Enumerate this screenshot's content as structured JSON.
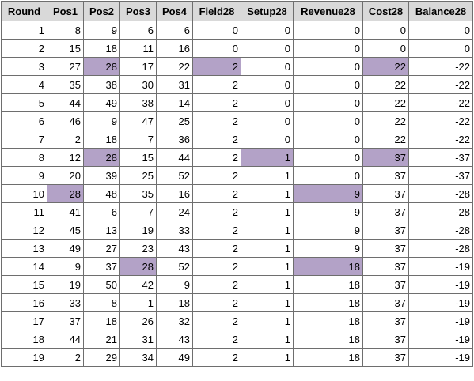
{
  "table": {
    "headers": [
      "Round",
      "Pos1",
      "Pos2",
      "Pos3",
      "Pos4",
      "Field28",
      "Setup28",
      "Revenue28",
      "Cost28",
      "Balance28"
    ],
    "highlight_color": "#b3a2c7",
    "header_color": "#d9d9d9",
    "rows": [
      [
        "1",
        "8",
        "9",
        "6",
        "6",
        "0",
        "0",
        "0",
        "0",
        "0"
      ],
      [
        "2",
        "15",
        "18",
        "11",
        "16",
        "0",
        "0",
        "0",
        "0",
        "0"
      ],
      [
        "3",
        "27",
        "28",
        "17",
        "22",
        "2",
        "0",
        "0",
        "22",
        "-22"
      ],
      [
        "4",
        "35",
        "38",
        "30",
        "31",
        "2",
        "0",
        "0",
        "22",
        "-22"
      ],
      [
        "5",
        "44",
        "49",
        "38",
        "14",
        "2",
        "0",
        "0",
        "22",
        "-22"
      ],
      [
        "6",
        "46",
        "9",
        "47",
        "25",
        "2",
        "0",
        "0",
        "22",
        "-22"
      ],
      [
        "7",
        "2",
        "18",
        "7",
        "36",
        "2",
        "0",
        "0",
        "22",
        "-22"
      ],
      [
        "8",
        "12",
        "28",
        "15",
        "44",
        "2",
        "1",
        "0",
        "37",
        "-37"
      ],
      [
        "9",
        "20",
        "39",
        "25",
        "52",
        "2",
        "1",
        "0",
        "37",
        "-37"
      ],
      [
        "10",
        "28",
        "48",
        "35",
        "16",
        "2",
        "1",
        "9",
        "37",
        "-28"
      ],
      [
        "11",
        "41",
        "6",
        "7",
        "24",
        "2",
        "1",
        "9",
        "37",
        "-28"
      ],
      [
        "12",
        "45",
        "13",
        "19",
        "33",
        "2",
        "1",
        "9",
        "37",
        "-28"
      ],
      [
        "13",
        "49",
        "27",
        "23",
        "43",
        "2",
        "1",
        "9",
        "37",
        "-28"
      ],
      [
        "14",
        "9",
        "37",
        "28",
        "52",
        "2",
        "1",
        "18",
        "37",
        "-19"
      ],
      [
        "15",
        "19",
        "50",
        "42",
        "9",
        "2",
        "1",
        "18",
        "37",
        "-19"
      ],
      [
        "16",
        "33",
        "8",
        "1",
        "18",
        "2",
        "1",
        "18",
        "37",
        "-19"
      ],
      [
        "17",
        "37",
        "18",
        "26",
        "32",
        "2",
        "1",
        "18",
        "37",
        "-19"
      ],
      [
        "18",
        "44",
        "21",
        "31",
        "43",
        "2",
        "1",
        "18",
        "37",
        "-19"
      ],
      [
        "19",
        "2",
        "29",
        "34",
        "49",
        "2",
        "1",
        "18",
        "37",
        "-19"
      ]
    ],
    "highlighted_cells": [
      {
        "row": 2,
        "col": 2
      },
      {
        "row": 2,
        "col": 5
      },
      {
        "row": 2,
        "col": 8
      },
      {
        "row": 7,
        "col": 2
      },
      {
        "row": 7,
        "col": 6
      },
      {
        "row": 7,
        "col": 8
      },
      {
        "row": 9,
        "col": 1
      },
      {
        "row": 9,
        "col": 7
      },
      {
        "row": 13,
        "col": 3
      },
      {
        "row": 13,
        "col": 7
      }
    ]
  }
}
